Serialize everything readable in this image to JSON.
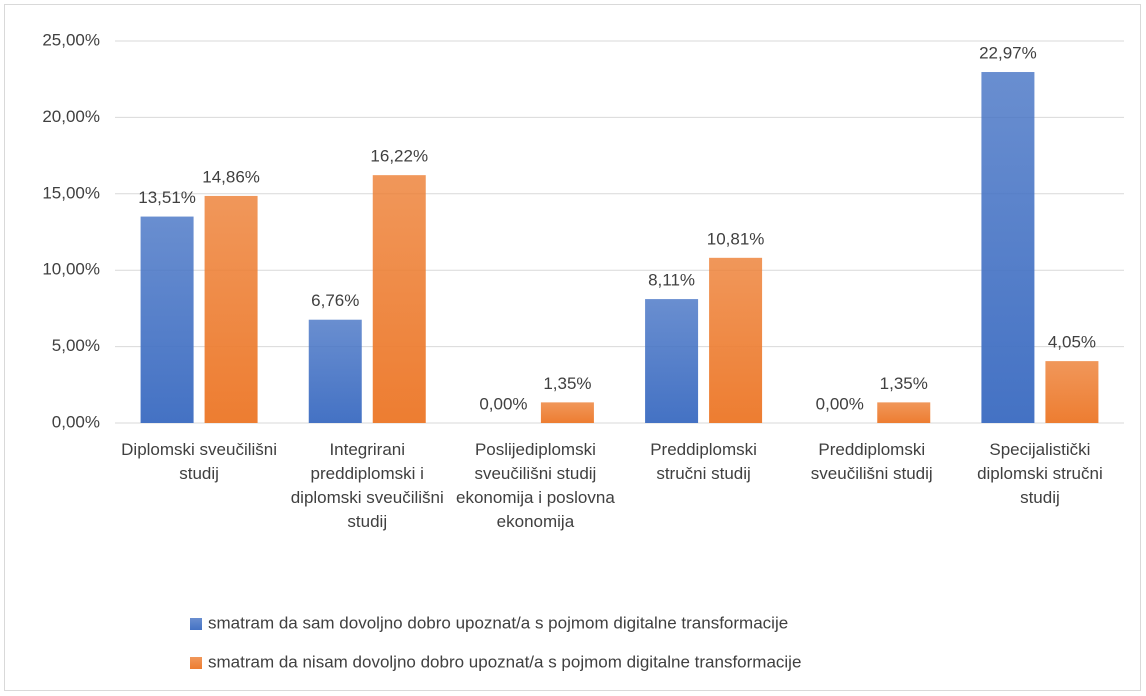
{
  "chart_data": {
    "type": "bar",
    "categories": [
      "Diplomski sveučilišni studij",
      "Integrirani preddiplomski i diplomski sveučilišni studij",
      "Poslijediplomski sveučilišni studij ekonomija i poslovna ekonomija",
      "Preddiplomski stručni studij",
      "Preddiplomski sveučilišni studij",
      "Specijalistički diplomski stručni studij"
    ],
    "series": [
      {
        "name": "smatram da sam dovoljno dobro upoznat/a s pojmom digitalne transformacije",
        "color": "#4472c4",
        "values": [
          13.51,
          6.76,
          0,
          8.11,
          0,
          22.97
        ],
        "value_labels": [
          "13,51%",
          "6,76%",
          "0,00%",
          "8,11%",
          "0,00%",
          "22,97%"
        ]
      },
      {
        "name": "smatram da nisam dovoljno dobro upoznat/a s pojmom digitalne transformacije",
        "color": "#ed7d31",
        "values": [
          14.86,
          16.22,
          1.35,
          10.81,
          1.35,
          4.05
        ],
        "value_labels": [
          "14,86%",
          "16,22%",
          "1,35%",
          "10,81%",
          "1,35%",
          "4,05%"
        ]
      }
    ],
    "ylim": [
      0,
      25
    ],
    "yticks": [
      {
        "value": 0,
        "label": "0,00%"
      },
      {
        "value": 5,
        "label": "5,00%"
      },
      {
        "value": 10,
        "label": "10,00%"
      },
      {
        "value": 15,
        "label": "15,00%"
      },
      {
        "value": 20,
        "label": "20,00%"
      },
      {
        "value": 25,
        "label": "25,00%"
      }
    ],
    "grid": true,
    "legend": "bottom"
  }
}
